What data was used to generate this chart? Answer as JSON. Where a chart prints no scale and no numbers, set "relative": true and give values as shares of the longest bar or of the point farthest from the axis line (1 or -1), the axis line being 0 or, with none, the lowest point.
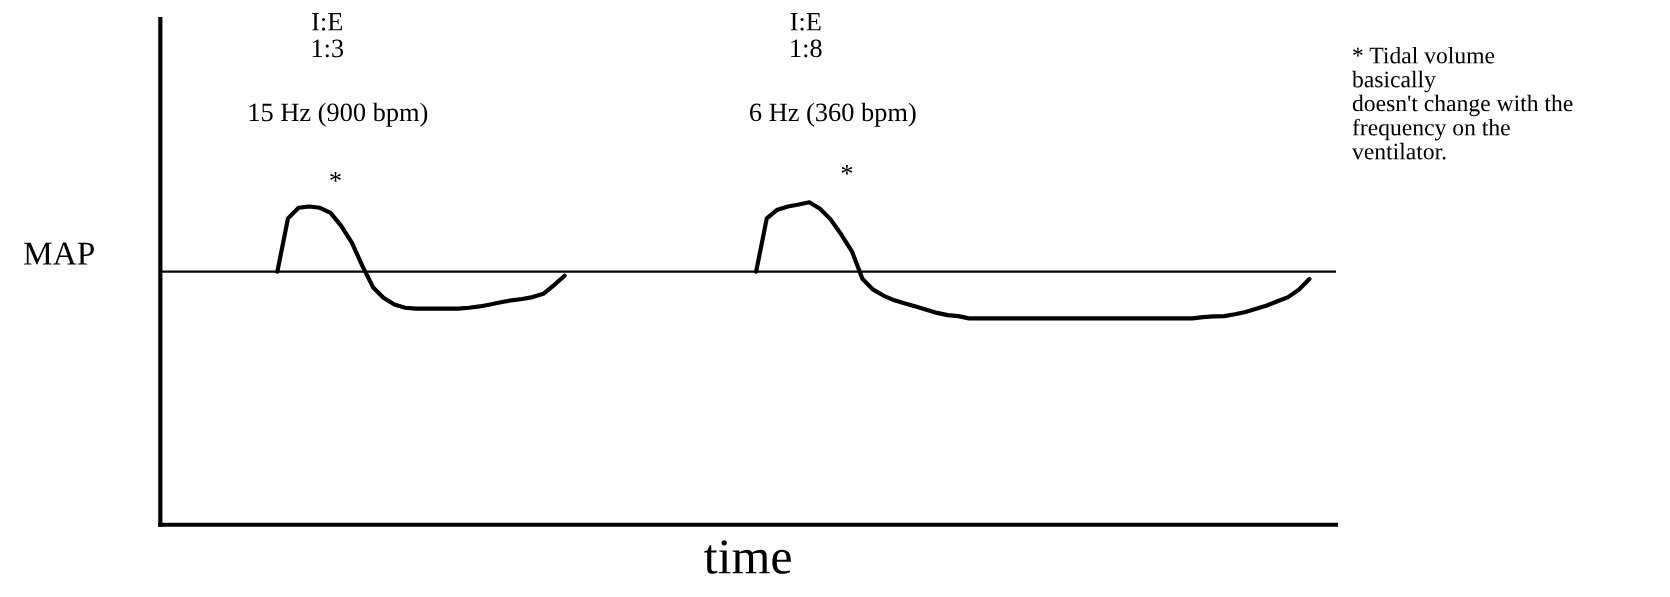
{
  "chart_data": {
    "type": "line",
    "relative": true,
    "xlabel": "time",
    "legend": false,
    "marker": "none",
    "line_style": "solid",
    "categories": [
      null,
      null,
      null,
      null,
      null,
      null,
      null,
      null,
      null,
      null,
      null,
      null,
      null,
      null,
      null,
      null,
      null,
      null,
      null,
      null,
      null,
      null,
      null,
      null,
      null,
      null,
      null,
      null,
      null,
      null,
      null,
      null,
      null,
      null,
      null,
      null,
      null,
      null,
      null,
      null,
      null,
      null,
      null,
      null,
      null,
      null,
      null,
      null,
      null,
      null,
      null,
      null,
      null,
      null,
      null,
      null,
      null,
      null,
      null,
      null,
      null,
      null,
      null,
      null,
      null,
      null,
      null,
      null,
      null,
      null,
      null,
      null,
      null,
      null,
      null,
      null,
      null,
      null,
      null,
      null,
      null,
      null,
      null,
      null,
      null,
      null,
      null,
      null,
      null,
      null,
      null,
      null,
      null,
      null,
      null,
      null,
      null,
      null,
      null,
      null,
      null,
      null,
      null,
      null,
      null,
      null,
      null,
      null,
      null,
      null,
      null
    ],
    "series": [
      {
        "color": "#000000",
        "values": [
          null,
          null,
          null,
          null,
          null,
          null,
          null,
          null,
          null,
          null,
          null,
          0.785,
          0.95,
          0.983,
          0.987,
          0.983,
          0.967,
          0.927,
          0.875,
          0.802,
          0.736,
          0.703,
          0.683,
          0.673,
          0.67,
          0.67,
          0.67,
          0.67,
          0.67,
          0.673,
          0.677,
          0.683,
          0.69,
          0.696,
          0.7,
          0.706,
          0.716,
          0.743,
          0.772,
          null,
          null,
          null,
          null,
          null,
          null,
          null,
          null,
          null,
          null,
          null,
          null,
          null,
          null,
          null,
          null,
          null,
          null,
          null,
          null,
          null,
          null,
          null,
          null,
          null,
          null,
          null,
          null,
          null,
          null,
          null,
          null,
          null,
          null,
          null,
          null,
          null,
          null,
          null,
          null,
          null,
          null,
          null,
          null,
          null,
          null,
          null,
          null,
          null,
          null,
          null,
          null,
          null,
          null,
          null,
          null,
          null,
          null,
          null,
          null,
          null,
          null,
          null,
          null,
          null,
          null,
          null,
          null,
          null,
          null,
          null,
          null
        ]
      },
      {
        "color": "#000000",
        "values": [
          null,
          null,
          null,
          null,
          null,
          null,
          null,
          null,
          null,
          null,
          null,
          null,
          null,
          null,
          null,
          null,
          null,
          null,
          null,
          null,
          null,
          null,
          null,
          null,
          null,
          null,
          null,
          null,
          null,
          null,
          null,
          null,
          null,
          null,
          null,
          null,
          null,
          null,
          null,
          null,
          null,
          null,
          null,
          null,
          null,
          null,
          null,
          null,
          null,
          null,
          null,
          null,
          null,
          null,
          null,
          null,
          0.785,
          0.95,
          0.977,
          0.987,
          0.993,
          1.0,
          0.98,
          0.947,
          0.9,
          0.848,
          0.762,
          0.729,
          0.71,
          0.696,
          0.686,
          0.677,
          0.667,
          0.657,
          0.65,
          0.647,
          0.64,
          0.64,
          0.64,
          0.64,
          0.64,
          0.64,
          0.64,
          0.64,
          0.64,
          0.64,
          0.64,
          0.64,
          0.64,
          0.64,
          0.64,
          0.64,
          0.64,
          0.64,
          0.64,
          0.64,
          0.64,
          0.64,
          0.644,
          0.646,
          0.647,
          0.653,
          0.66,
          0.67,
          0.68,
          0.693,
          0.706,
          0.729,
          0.762,
          null,
          null
        ]
      }
    ],
    "ref_lines": [
      {
        "axis": "y",
        "value": 0.785,
        "label": "MAP",
        "color": "#000000",
        "line_style": "solid"
      }
    ],
    "annotations": [
      "I:E\n1:3",
      "15 Hz (900 bpm)",
      "*",
      "I:E\n1:8",
      "6 Hz (360 bpm)",
      "*",
      "* Tidal volume\nbasically\ndoesn't change with the\nfrequency on the\nventilator."
    ]
  }
}
